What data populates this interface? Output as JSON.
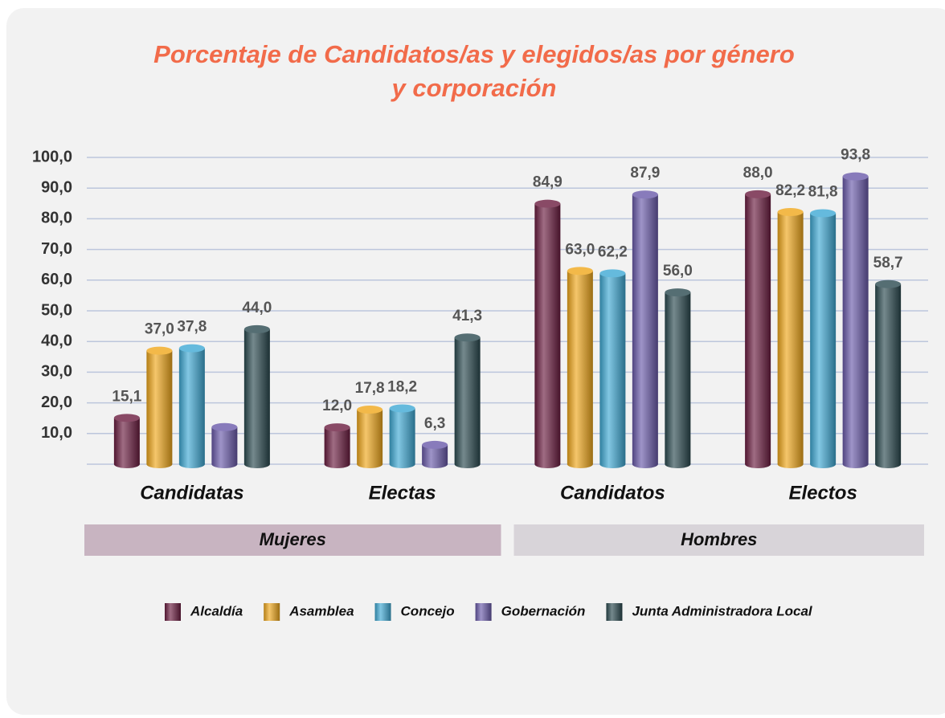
{
  "chart_data": {
    "type": "bar",
    "title": [
      "Porcentaje de Candidatos/as y elegidos/as por género",
      "y corporación"
    ],
    "categories": [
      "Candidatas",
      "Electas",
      "Candidatos",
      "Electos"
    ],
    "groups": [
      {
        "name": "Mujeres",
        "color": "#c8b4c1",
        "span": [
          0,
          1
        ]
      },
      {
        "name": "Hombres",
        "color": "#d8d4d9",
        "span": [
          2,
          3
        ]
      }
    ],
    "series": [
      {
        "name": "Alcaldía",
        "color": "#6b1d40",
        "values": [
          15.1,
          12.0,
          84.9,
          88.0
        ],
        "value_labels": [
          "15,1",
          "12,0",
          "84,9",
          "88,0"
        ]
      },
      {
        "name": "Asamblea",
        "color": "#f0a81c",
        "values": [
          37.0,
          17.8,
          63.0,
          82.2
        ],
        "value_labels": [
          "37,0",
          "17,8",
          "63,0",
          "82,2"
        ]
      },
      {
        "name": "Concejo",
        "color": "#3fa9d4",
        "values": [
          37.8,
          18.2,
          62.2,
          81.8
        ],
        "value_labels": [
          "37,8",
          "18,2",
          "62,2",
          "81,8"
        ]
      },
      {
        "name": "Gobernación",
        "color": "#6a5aaa",
        "values": [
          12.1,
          6.3,
          87.9,
          93.8
        ],
        "value_labels": [
          null,
          "6,3",
          "87,9",
          "93,8"
        ]
      },
      {
        "name": "Junta Administradora Local",
        "color": "#2b4a50",
        "values": [
          44.0,
          41.3,
          56.0,
          58.7
        ],
        "value_labels": [
          "44,0",
          "41,3",
          "56,0",
          "58,7"
        ]
      }
    ],
    "ylim": [
      0,
      100
    ],
    "yticks": [
      {
        "value": 10,
        "label": "10,0"
      },
      {
        "value": 20,
        "label": "20,0"
      },
      {
        "value": 30,
        "label": "30,0"
      },
      {
        "value": 40,
        "label": "40,0"
      },
      {
        "value": 50,
        "label": "50,0"
      },
      {
        "value": 60,
        "label": "60,0"
      },
      {
        "value": 70,
        "label": "70,0"
      },
      {
        "value": 80,
        "label": "80,0"
      },
      {
        "value": 90,
        "label": "90,0"
      },
      {
        "value": 100,
        "label": "100,0"
      }
    ],
    "grid": true,
    "legend": "bottom"
  }
}
